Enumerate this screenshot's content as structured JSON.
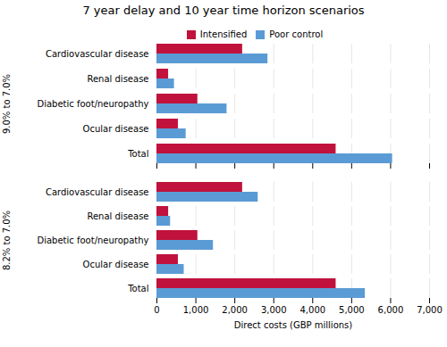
{
  "chart_data": [
    {
      "type": "bar",
      "orientation": "horizontal",
      "title": "7 year delay and 10 year time horizon scenarios",
      "ylabel": "9.0% to 7.0%",
      "categories": [
        "Total",
        "Ocular disease",
        "Diabetic foot/neuropathy",
        "Renal disease",
        "Cardiovascular disease"
      ],
      "series": [
        {
          "name": "Intensified",
          "color": "#c0123c",
          "values": [
            4600,
            550,
            1050,
            300,
            2200
          ]
        },
        {
          "name": "Poor control",
          "color": "#5b9bd5",
          "values": [
            6050,
            750,
            1800,
            450,
            2850
          ]
        }
      ],
      "xlim": [
        0,
        7000
      ],
      "xticks": [
        0,
        {
          "value": 1000,
          "label": "1,000"
        },
        {
          "value": 2000,
          "label": "2,000"
        },
        {
          "value": 3000,
          "label": "3,000"
        },
        {
          "value": 4000,
          "label": "4,000"
        },
        {
          "value": 5000,
          "label": "5,000"
        },
        {
          "value": 6000,
          "label": "6,000"
        },
        {
          "value": 7000,
          "label": "7,000"
        }
      ],
      "grid": true,
      "legend": "top",
      "tick_labels": "y"
    },
    {
      "type": "bar",
      "orientation": "horizontal",
      "ylabel": "8.2% to 7.0%",
      "xlabel": "Direct costs (GBP millions)",
      "categories": [
        "Total",
        "Ocular disease",
        "Diabetic foot/neuropathy",
        "Renal disease",
        "Cardiovascular disease"
      ],
      "series": [
        {
          "name": "Intensified",
          "color": "#c0123c",
          "values": [
            4600,
            550,
            1050,
            300,
            2200
          ]
        },
        {
          "name": "Poor control",
          "color": "#5b9bd5",
          "values": [
            5350,
            700,
            1450,
            350,
            2600
          ]
        }
      ],
      "xlim": [
        0,
        7000
      ],
      "xticks": [
        0,
        {
          "value": 1000,
          "label": "1,000"
        },
        {
          "value": 2000,
          "label": "2,000"
        },
        {
          "value": 3000,
          "label": "3,000"
        },
        {
          "value": 4000,
          "label": "4,000"
        },
        {
          "value": 5000,
          "label": "5,000"
        },
        {
          "value": 6000,
          "label": "6,000"
        },
        {
          "value": 7000,
          "label": "7,000"
        }
      ],
      "grid": true
    }
  ]
}
